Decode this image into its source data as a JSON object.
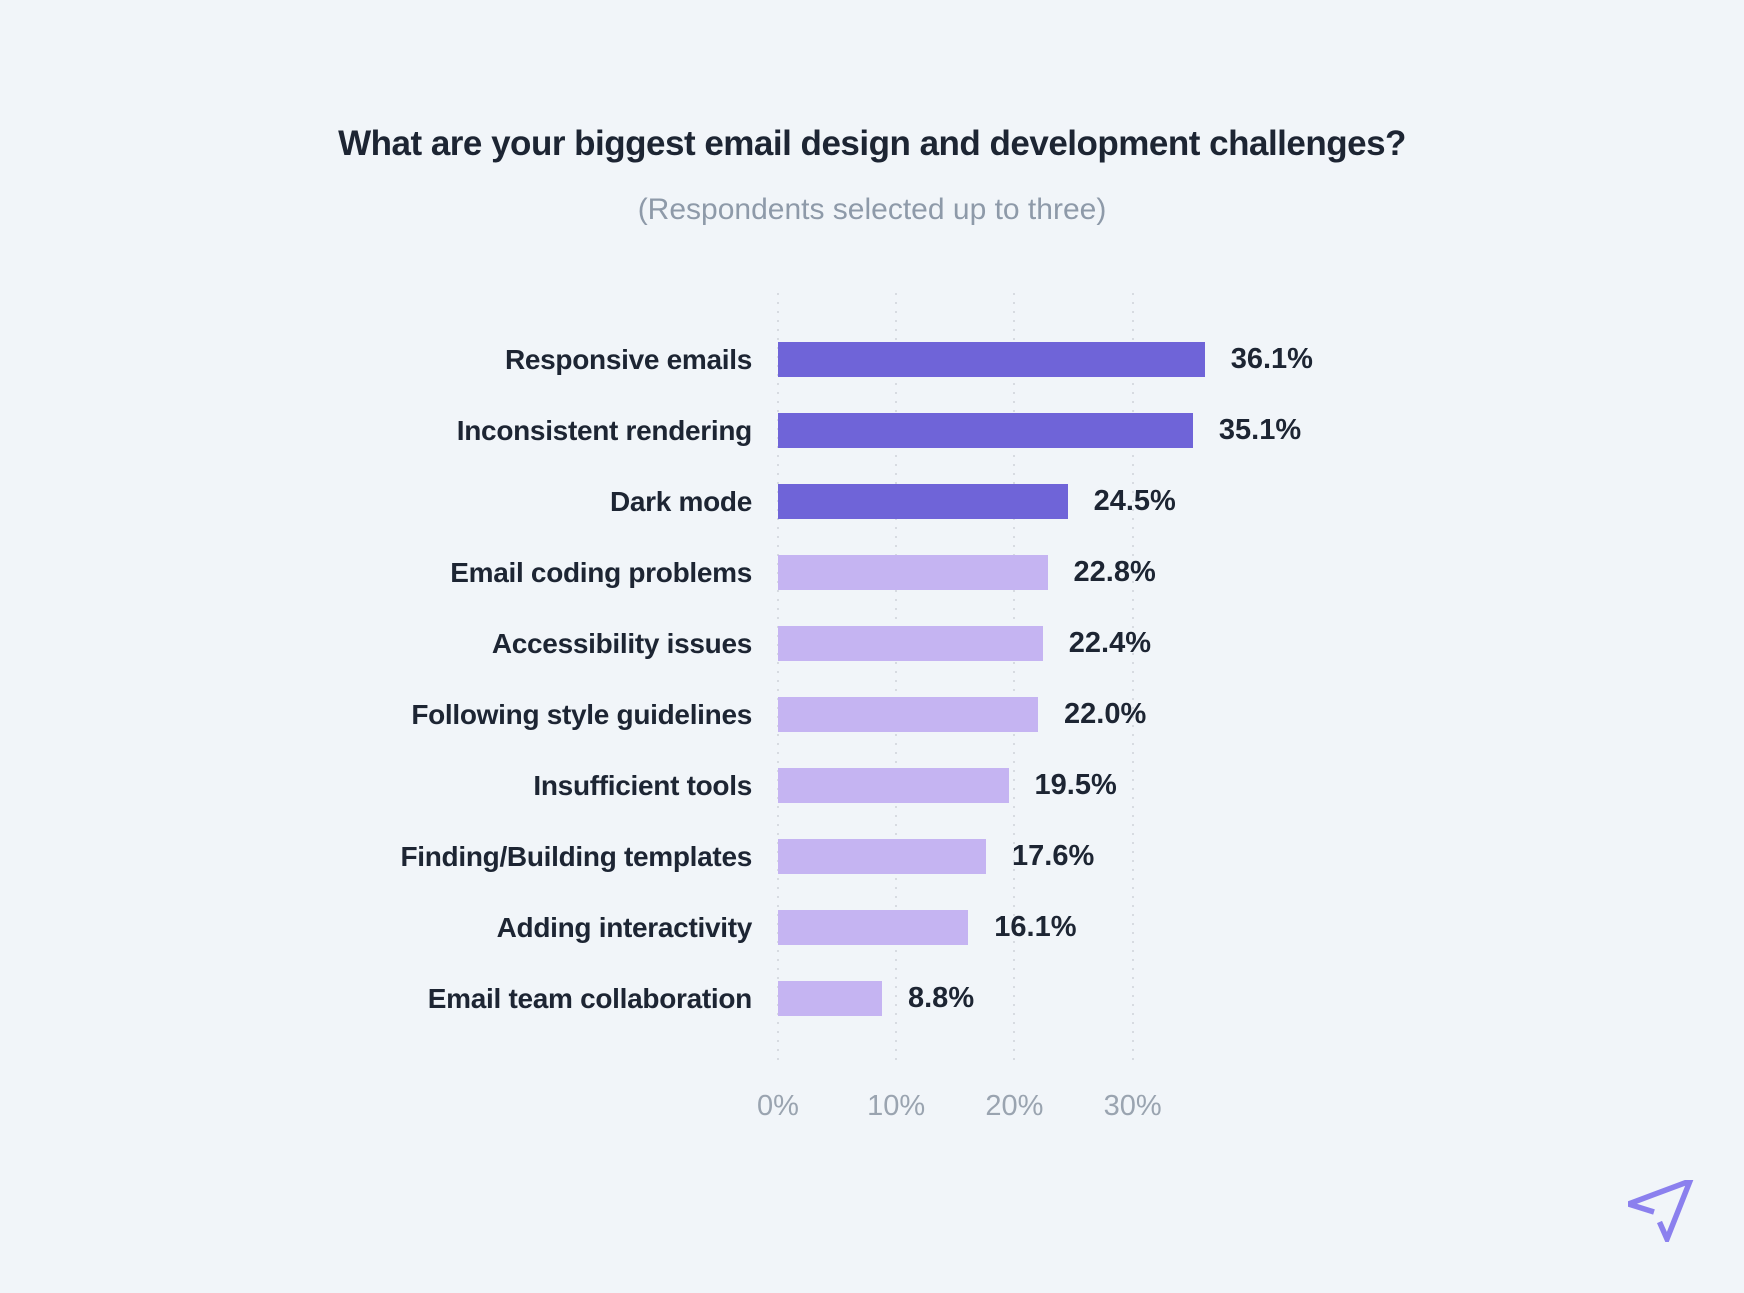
{
  "title": "What are your biggest email design and development challenges?",
  "subtitle": "(Respondents selected up to three)",
  "chart_data": {
    "type": "bar",
    "orientation": "horizontal",
    "categories": [
      "Responsive emails",
      "Inconsistent rendering",
      "Dark mode",
      "Email coding problems",
      "Accessibility issues",
      "Following style guidelines",
      "Insufficient tools",
      "Finding/Building templates",
      "Adding interactivity",
      "Email team collaboration"
    ],
    "values": [
      36.1,
      35.1,
      24.5,
      22.8,
      22.4,
      22.0,
      19.5,
      17.6,
      16.1,
      8.8
    ],
    "value_labels": [
      "36.1%",
      "35.1%",
      "24.5%",
      "22.8%",
      "22.4%",
      "22.0%",
      "19.5%",
      "17.6%",
      "16.1%",
      "8.8%"
    ],
    "highlight_count": 3,
    "xlabel": "",
    "ylabel": "",
    "xlim": [
      0,
      38
    ],
    "xticks": {
      "values": [
        0,
        10,
        20,
        30
      ],
      "labels": [
        "0%",
        "10%",
        "20%",
        "30%"
      ]
    },
    "grid": "vertical-dotted",
    "legend": "none",
    "colors": {
      "bar_highlight": "#6f64d8",
      "bar_normal": "#c5b4f2",
      "background": "#f1f5f9",
      "title_text": "#1d2533",
      "subtitle_text": "#8e9aa9",
      "axis_text": "#9aa4b0",
      "gridline": "#d7dbe1",
      "logo": "#8b80ee"
    }
  },
  "icons": {
    "logo": "paper-plane-icon"
  }
}
